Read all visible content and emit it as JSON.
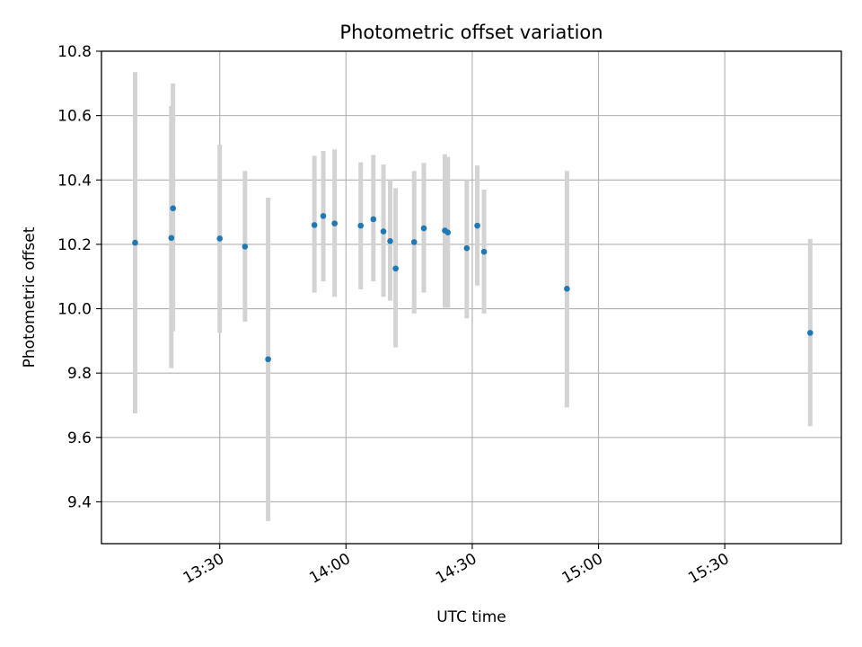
{
  "chart_data": {
    "type": "scatter",
    "title": "Photometric offset variation",
    "xlabel": "UTC time",
    "ylabel": "Photometric offset",
    "x_ticks": [
      "13:30",
      "14:00",
      "14:30",
      "15:00",
      "15:30"
    ],
    "x_tick_values_min": [
      810,
      840,
      870,
      900,
      930
    ],
    "y_ticks": [
      "9.4",
      "9.6",
      "9.8",
      "10.0",
      "10.2",
      "10.4",
      "10.6",
      "10.8"
    ],
    "y_tick_values": [
      9.4,
      9.6,
      9.8,
      10.0,
      10.2,
      10.4,
      10.6,
      10.8
    ],
    "xlim_min": [
      781.9,
      957.7
    ],
    "ylim": [
      9.27,
      10.8
    ],
    "grid": true,
    "colors": {
      "point": "#1f77b4",
      "errorbar": "#d3d3d3",
      "grid": "#b0b0b0"
    },
    "series": [
      {
        "points": [
          {
            "t": 789.9,
            "y": 10.205,
            "ylo": 9.675,
            "yhi": 10.735
          },
          {
            "t": 798.5,
            "y": 10.22,
            "ylo": 9.815,
            "yhi": 10.63
          },
          {
            "t": 798.9,
            "y": 10.312,
            "ylo": 9.93,
            "yhi": 10.7
          },
          {
            "t": 810.0,
            "y": 10.218,
            "ylo": 9.925,
            "yhi": 10.51
          },
          {
            "t": 816.0,
            "y": 10.193,
            "ylo": 9.96,
            "yhi": 10.428
          },
          {
            "t": 821.5,
            "y": 9.843,
            "ylo": 9.34,
            "yhi": 10.345
          },
          {
            "t": 832.5,
            "y": 10.26,
            "ylo": 10.05,
            "yhi": 10.475
          },
          {
            "t": 834.6,
            "y": 10.288,
            "ylo": 10.085,
            "yhi": 10.49
          },
          {
            "t": 837.3,
            "y": 10.265,
            "ylo": 10.037,
            "yhi": 10.495
          },
          {
            "t": 843.5,
            "y": 10.258,
            "ylo": 10.06,
            "yhi": 10.455
          },
          {
            "t": 846.5,
            "y": 10.278,
            "ylo": 10.085,
            "yhi": 10.478
          },
          {
            "t": 848.9,
            "y": 10.24,
            "ylo": 10.037,
            "yhi": 10.448
          },
          {
            "t": 850.5,
            "y": 10.21,
            "ylo": 10.025,
            "yhi": 10.4
          },
          {
            "t": 851.8,
            "y": 10.125,
            "ylo": 9.88,
            "yhi": 10.375
          },
          {
            "t": 856.2,
            "y": 10.207,
            "ylo": 9.985,
            "yhi": 10.428
          },
          {
            "t": 858.5,
            "y": 10.25,
            "ylo": 10.05,
            "yhi": 10.453
          },
          {
            "t": 863.5,
            "y": 10.243,
            "ylo": 10.003,
            "yhi": 10.48
          },
          {
            "t": 864.2,
            "y": 10.237,
            "ylo": 10.003,
            "yhi": 10.472
          },
          {
            "t": 868.7,
            "y": 10.188,
            "ylo": 9.97,
            "yhi": 10.4
          },
          {
            "t": 871.2,
            "y": 10.258,
            "ylo": 10.072,
            "yhi": 10.445
          },
          {
            "t": 872.8,
            "y": 10.177,
            "ylo": 9.985,
            "yhi": 10.37
          },
          {
            "t": 892.5,
            "y": 10.062,
            "ylo": 9.693,
            "yhi": 10.428
          },
          {
            "t": 950.3,
            "y": 9.925,
            "ylo": 9.635,
            "yhi": 10.217
          }
        ]
      }
    ]
  }
}
